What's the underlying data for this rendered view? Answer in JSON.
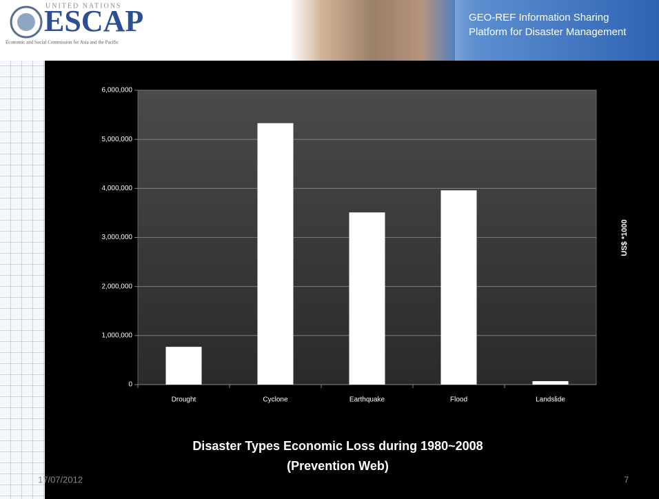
{
  "header": {
    "org": "UNITED NATIONS",
    "logo": "ESCAP",
    "caption": "Economic and Social Commission for Asia and the Pacific",
    "title_lines": [
      "GEO-REF Information Sharing",
      "Platform for Disaster Management"
    ]
  },
  "chart_data": {
    "type": "bar",
    "title": "Disaster Types Economic Loss during 1980~2008",
    "subtitle": "(Prevention Web)",
    "y_label": "US$ *1000",
    "categories": [
      "Drought",
      "Cyclone",
      "Earthquake",
      "Flood",
      "Landslide"
    ],
    "values": [
      770000,
      5330000,
      3510000,
      3960000,
      70000
    ],
    "color": "#ffffff",
    "ylim": [
      0,
      6000000
    ],
    "yticks": [
      0,
      {
        "value": 1000000,
        "label": "1,000,000"
      },
      {
        "value": 2000000,
        "label": "2,000,000"
      },
      {
        "value": 3000000,
        "label": "3,000,000"
      },
      {
        "value": 4000000,
        "label": "4,000,000"
      },
      {
        "value": 5000000,
        "label": "5,000,000"
      },
      {
        "value": 6000000,
        "label": "6,000,000"
      }
    ],
    "grid": true
  },
  "footer": {
    "date": "17/07/2012",
    "page": "7"
  }
}
